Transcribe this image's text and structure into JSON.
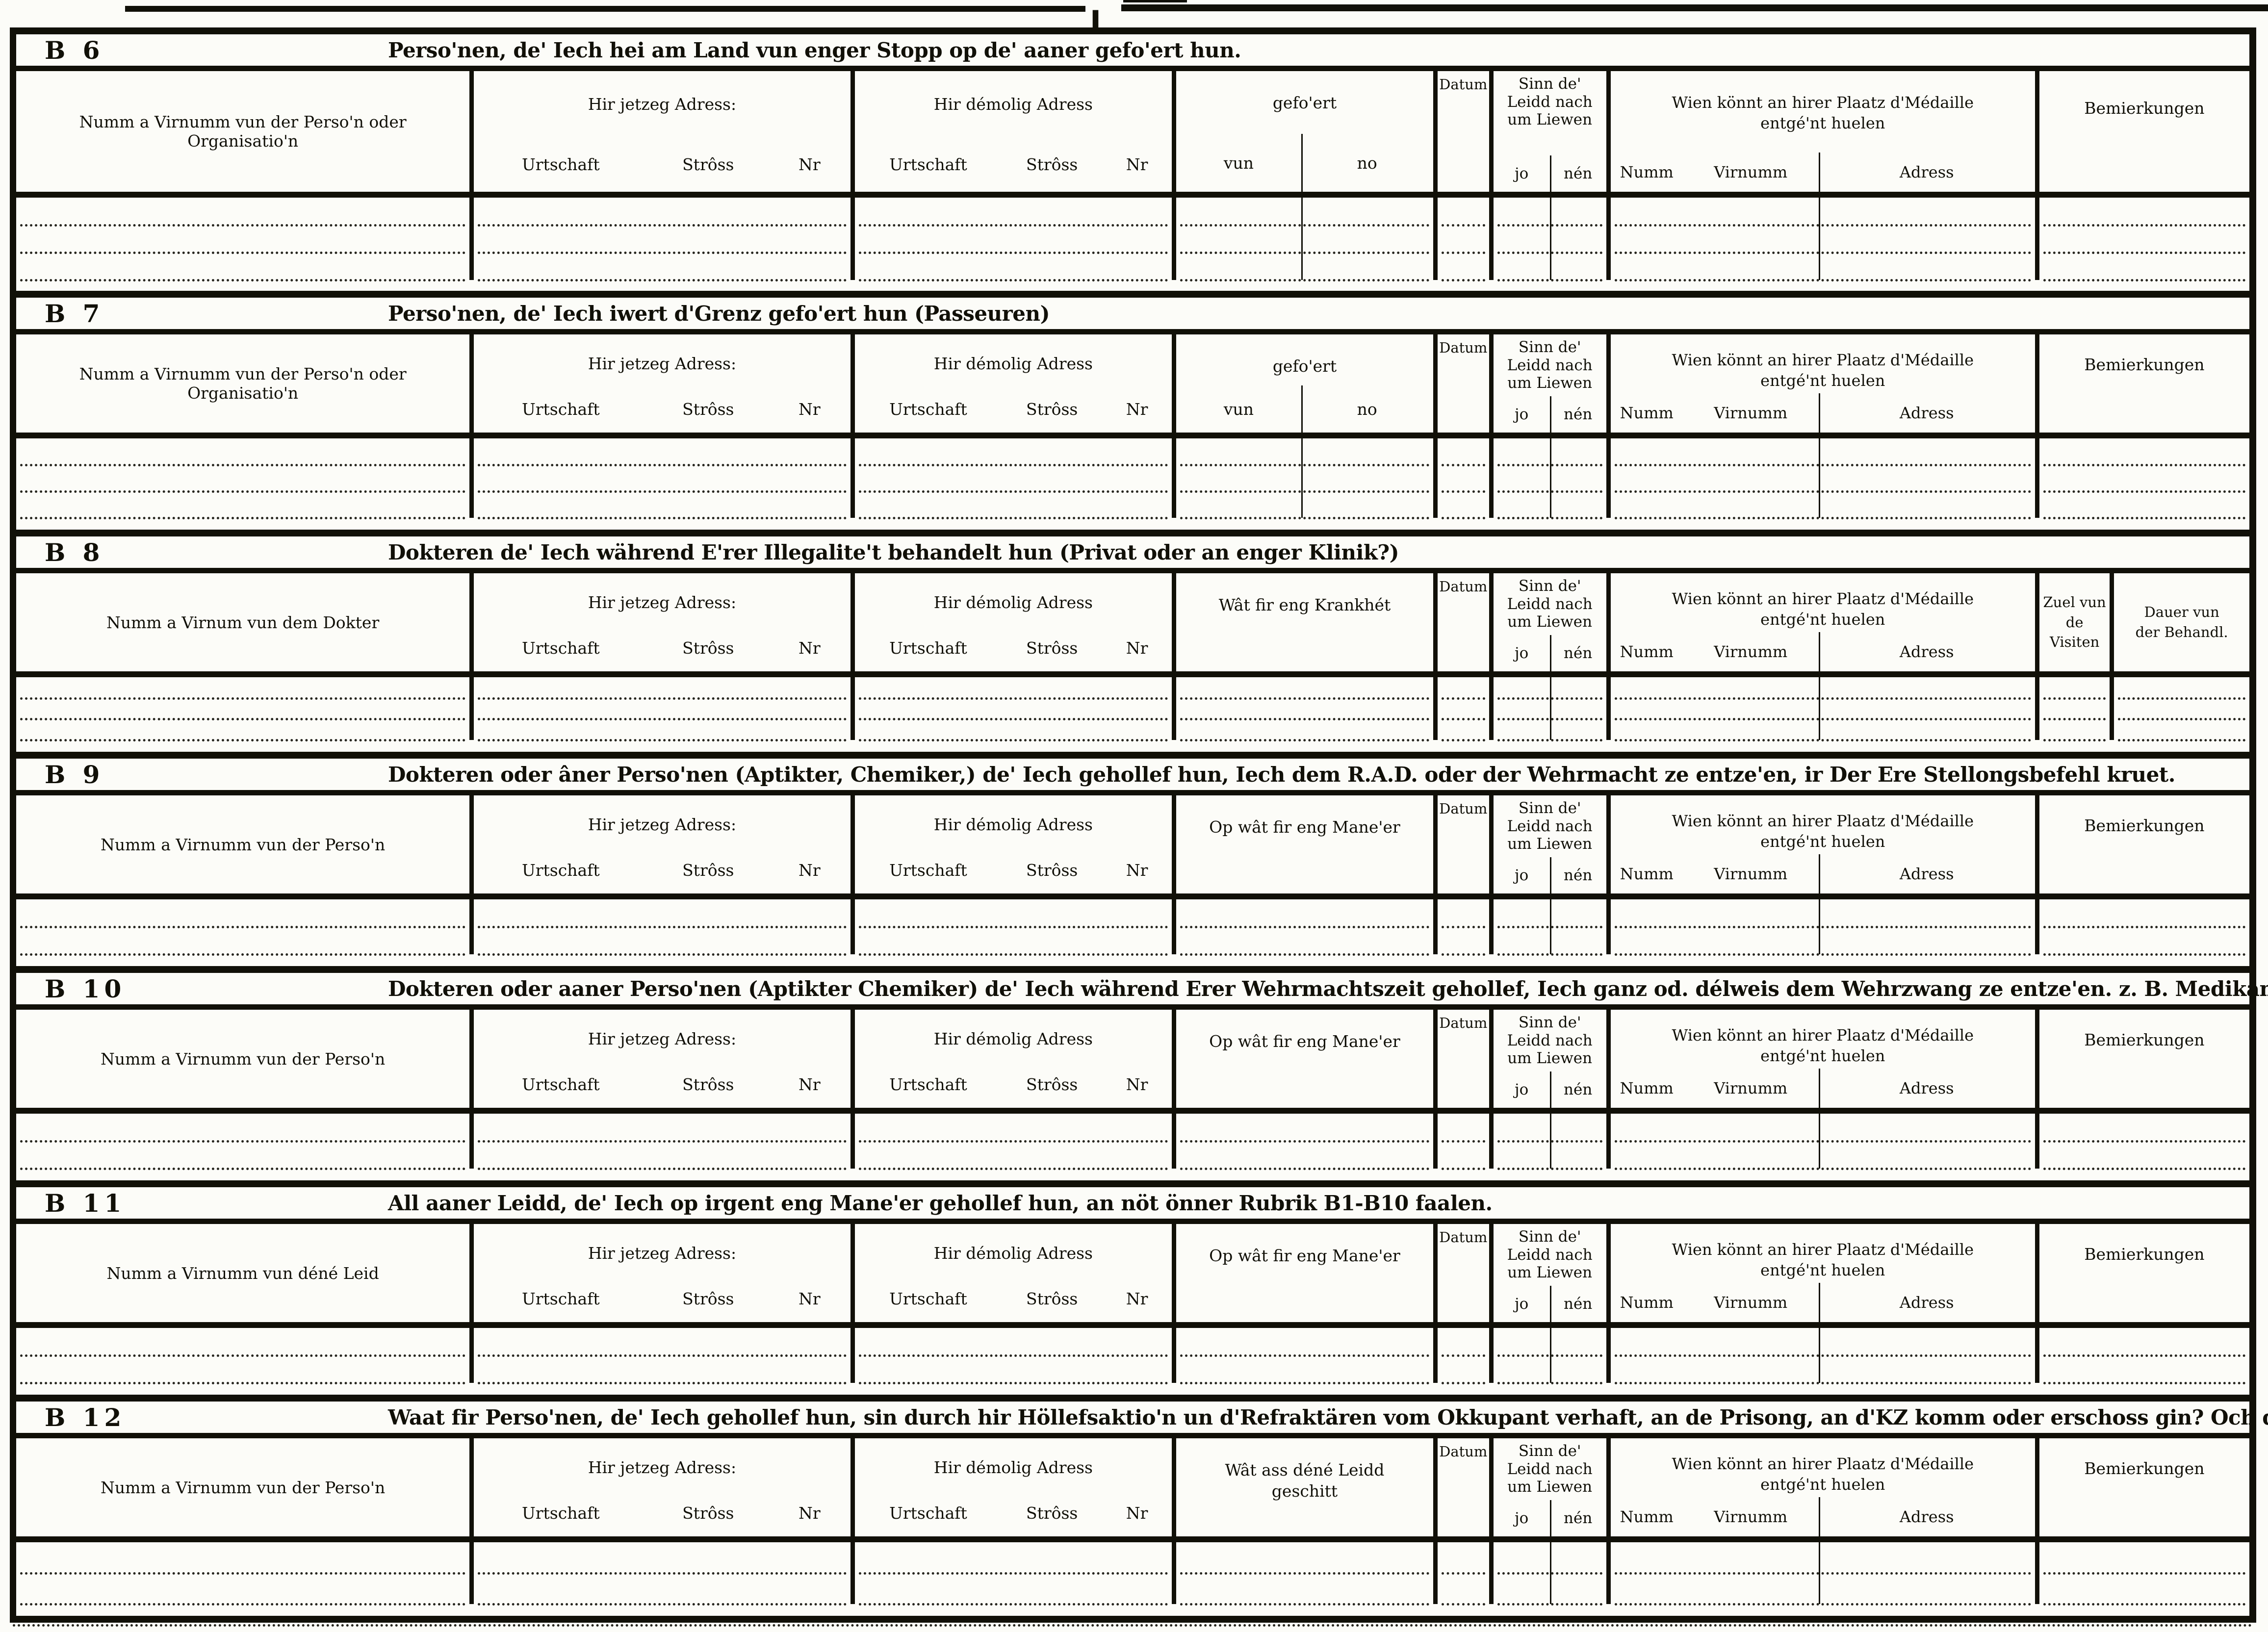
{
  "page": {
    "top_mark": "I"
  },
  "shared": {
    "addr_now": "Hir jetzeg Adress:",
    "addr_old": "Hir démolig Adress",
    "urtschaft": "Urtschaft",
    "stross": "Strôss",
    "nr": "Nr",
    "datum": "Datum",
    "sinn_line1": "Sinn de'",
    "sinn_line2": "Leidd nach",
    "sinn_line3": "um Liewen",
    "jo": "jo",
    "nen": "nén",
    "wien_line1": "Wien könnt an hirer Plaatz d'Médaille",
    "wien_line2": "entgé'nt huelen",
    "numm": "Numm",
    "virnumm": "Virnumm",
    "adress": "Adress",
    "bemierkungen": "Bemierkungen"
  },
  "sections": [
    {
      "id": "B 6",
      "title": "Perso'nen, de' Iech hei am Land vun enger Stopp op de' aaner gefo'ert hun.",
      "name_col": "Numm a Virnumm vun der Perso'n oder Organisatio'n",
      "mid": {
        "line1": "gefo'ert",
        "left": "vun",
        "right": "no"
      },
      "tail": {
        "type": "bemierkungen"
      },
      "blank_rows": 3
    },
    {
      "id": "B 7",
      "title": "Perso'nen, de' Iech iwert d'Grenz gefo'ert hun (Passeuren)",
      "name_col": "Numm a Virnumm vun der Perso'n oder Organisatio'n",
      "mid": {
        "line1": "gefo'ert",
        "left": "vun",
        "right": "no"
      },
      "tail": {
        "type": "bemierkungen"
      },
      "blank_rows": 3
    },
    {
      "id": "B 8",
      "title": "Dokteren de' Iech während E'rer Illegalite't behandelt hun (Privat oder an enger Klinik?)",
      "name_col": "Numm a Virnum vun dem Dokter",
      "mid": {
        "line1": "Wât fir eng Krankhét"
      },
      "tail": {
        "type": "visits",
        "col1_line1": "Zuel vun",
        "col1_line2": "de Visiten",
        "col2_line1": "Dauer vun",
        "col2_line2": "der Behandl."
      },
      "blank_rows": 3
    },
    {
      "id": "B 9",
      "title": "Dokteren oder âner Perso'nen (Aptikter, Chemiker,) de' Iech gehollef hun, Iech dem R.A.D. oder der Wehrmacht ze entze'en, ir Der Ere Stellongsbefehl kruet.",
      "name_col": "Numm a Virnumm vun der Perso'n",
      "mid": {
        "line1": "Op wât fir eng Mane'er"
      },
      "tail": {
        "type": "bemierkungen"
      },
      "blank_rows": 2
    },
    {
      "id": "B 10",
      "title": "Dokteren oder aaner Perso'nen (Aptikter Chemiker) de' Iech während Erer Wehrmachtszeit gehollef, Iech ganz od. délweis dem Wehrzwang ze entze'en. z. B. Medikamenter.",
      "name_col": "Numm a Virnumm vun der Perso'n",
      "mid": {
        "line1": "Op wât fir eng Mane'er"
      },
      "tail": {
        "type": "bemierkungen"
      },
      "blank_rows": 2
    },
    {
      "id": "B 11",
      "title": "All aaner Leidd, de' Iech op irgent eng Mane'er gehollef hun, an nöt önner Rubrik B1-B10 faalen.",
      "name_col": "Numm a Virnumm vun déné Leid",
      "mid": {
        "line1": "Op wât fir eng Mane'er"
      },
      "tail": {
        "type": "bemierkungen"
      },
      "blank_rows": 2
    },
    {
      "id": "B 12",
      "title": "Waat fir Perso'nen, de' Iech gehollef hun, sin durch hir Höllefsaktio'n un d'Refraktären vom Okkupant verhaft, an de Prisong, an d'KZ komm oder erschoss gin? Och d'Emsiedlung opfe'eren.",
      "name_col": "Numm a Virnumm vun der Perso'n",
      "mid": {
        "line1": "Wât ass déné Leidd",
        "line2": "geschitt"
      },
      "tail": {
        "type": "bemierkungen"
      },
      "blank_rows": 2
    }
  ]
}
